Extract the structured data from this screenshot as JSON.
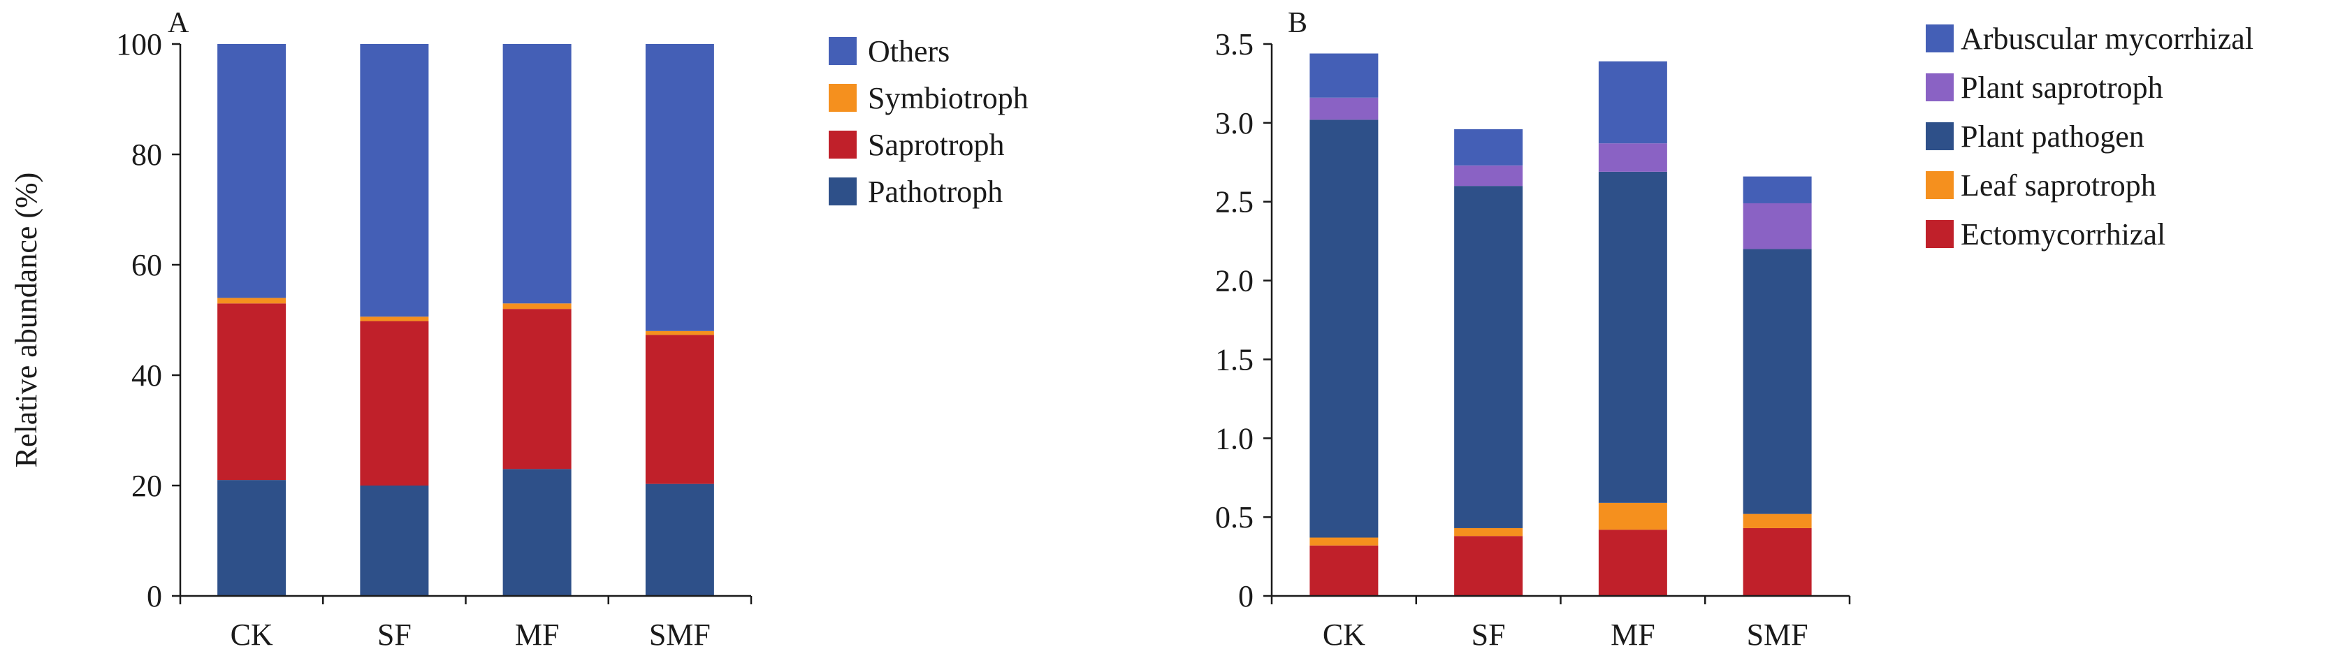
{
  "chart_data": [
    {
      "panel_label": "A",
      "type": "bar",
      "stacked": true,
      "categories": [
        "CK",
        "SF",
        "MF",
        "SMF"
      ],
      "series": [
        {
          "name": "Pathotroph",
          "color": "#2e5089",
          "values": [
            21.0,
            20.0,
            23.0,
            20.3
          ]
        },
        {
          "name": "Saprotroph",
          "color": "#c0202a",
          "values": [
            32.0,
            29.8,
            29.0,
            27.0
          ]
        },
        {
          "name": "Symbiotroph",
          "color": "#f5901e",
          "values": [
            1.0,
            0.8,
            1.0,
            0.7
          ]
        },
        {
          "name": "Others",
          "color": "#445fb6",
          "values": [
            46.0,
            49.4,
            47.0,
            52.0
          ]
        }
      ],
      "legend_order": [
        "Others",
        "Symbiotroph",
        "Saprotroph",
        "Pathotroph"
      ],
      "legend_position": "top-right",
      "ylabel": "Relative abundance (%)",
      "xlabel": "",
      "ylim": [
        0,
        100
      ],
      "yticks": [
        0,
        20,
        40,
        60,
        80,
        100
      ],
      "ytick_labels": [
        "0",
        "20",
        "40",
        "60",
        "80",
        "100"
      ],
      "grid": false
    },
    {
      "panel_label": "B",
      "type": "bar",
      "stacked": true,
      "categories": [
        "CK",
        "SF",
        "MF",
        "SMF"
      ],
      "series": [
        {
          "name": "Ectomycorrhizal",
          "color": "#c0202a",
          "values": [
            0.32,
            0.38,
            0.42,
            0.43
          ]
        },
        {
          "name": "Leaf saprotroph",
          "color": "#f5901e",
          "values": [
            0.05,
            0.05,
            0.17,
            0.09
          ]
        },
        {
          "name": "Plant pathogen",
          "color": "#2e5089",
          "values": [
            2.65,
            2.17,
            2.1,
            1.68
          ]
        },
        {
          "name": "Plant saprotroph",
          "color": "#8a62c4",
          "values": [
            0.14,
            0.13,
            0.18,
            0.29
          ]
        },
        {
          "name": "Arbuscular mycorrhizal",
          "color": "#445fb6",
          "values": [
            0.28,
            0.23,
            0.52,
            0.17
          ]
        }
      ],
      "legend_order": [
        "Arbuscular mycorrhizal",
        "Plant saprotroph",
        "Plant pathogen",
        "Leaf saprotroph",
        "Ectomycorrhizal"
      ],
      "legend_position": "top-right",
      "ylabel": "",
      "xlabel": "",
      "ylim": [
        0,
        3.5
      ],
      "yticks": [
        0,
        0.5,
        1.0,
        1.5,
        2.0,
        2.5,
        3.0,
        3.5
      ],
      "ytick_labels": [
        "0",
        "0.5",
        "1.0",
        "1.5",
        "2.0",
        "2.5",
        "3.0",
        "3.5"
      ],
      "grid": false
    }
  ]
}
